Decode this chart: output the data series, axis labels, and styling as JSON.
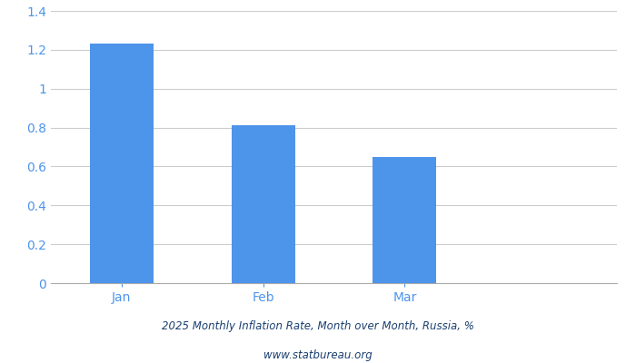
{
  "categories": [
    "Jan",
    "Feb",
    "Mar"
  ],
  "values": [
    1.23,
    0.81,
    0.65
  ],
  "bar_color": "#4d94eb",
  "title_line1": "2025 Monthly Inflation Rate, Month over Month, Russia, %",
  "title_line2": "www.statbureau.org",
  "title_color": "#1a3f6f",
  "ylim": [
    0,
    1.4
  ],
  "yticks": [
    0,
    0.2,
    0.4,
    0.6,
    0.8,
    1.0,
    1.2,
    1.4
  ],
  "background_color": "#ffffff",
  "grid_color": "#cccccc",
  "tick_label_color": "#4d94eb",
  "bar_width": 0.45,
  "figsize": [
    7.0,
    4.0
  ],
  "dpi": 100
}
